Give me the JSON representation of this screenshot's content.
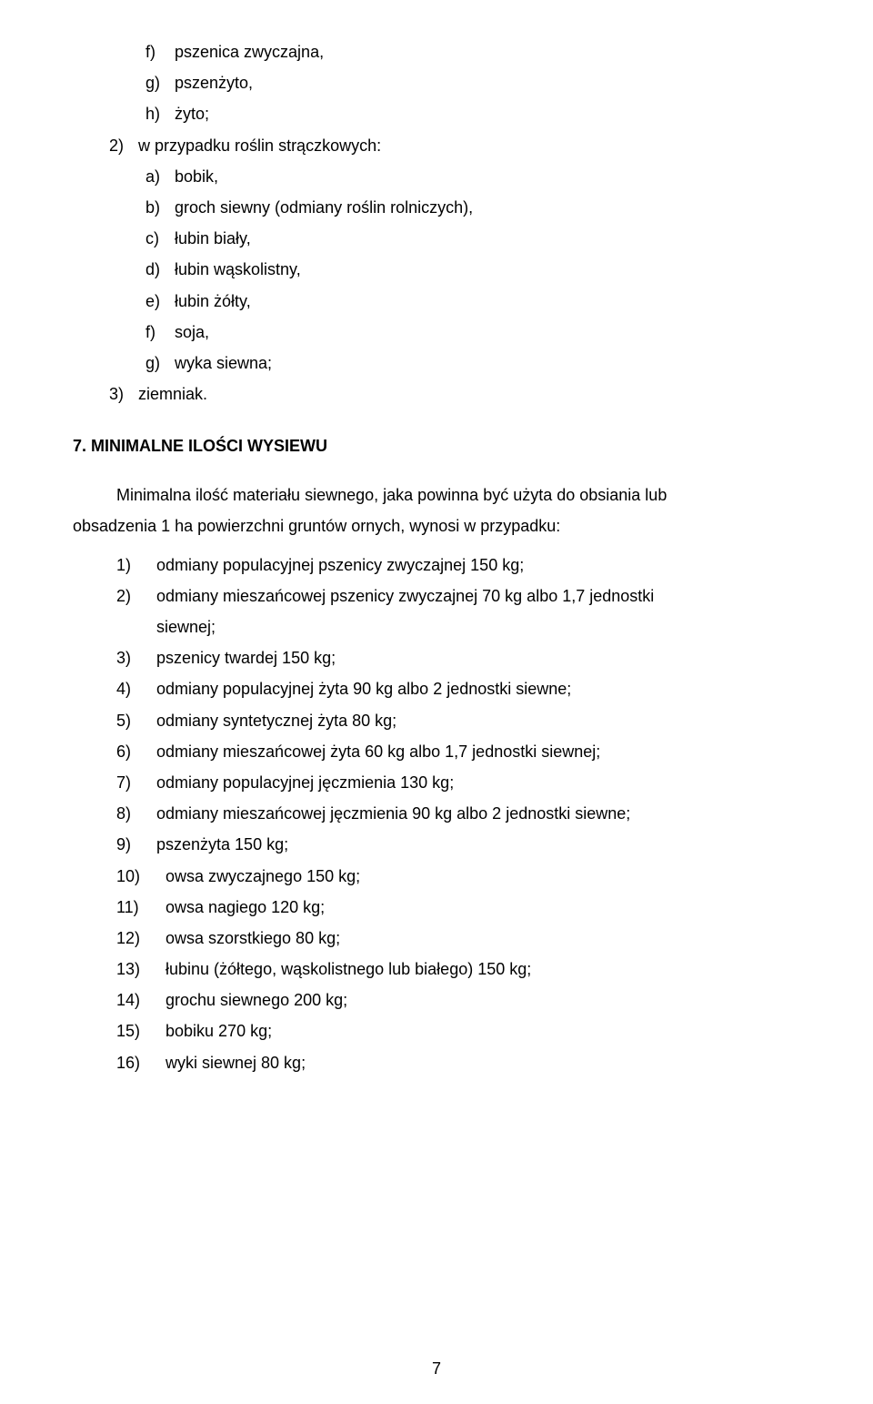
{
  "prev": {
    "f": "pszenica zwyczajna,",
    "g": "pszenżyto,",
    "h": "żyto;",
    "n2": "w przypadku roślin strączkowych:",
    "a": "bobik,",
    "b": "groch siewny (odmiany roślin rolniczych),",
    "c": "łubin biały,",
    "d": "łubin wąskolistny,",
    "e": "łubin żółty,",
    "f2": "soja,",
    "g2": "wyka siewna;",
    "n3": "ziemniak."
  },
  "heading": "7. MINIMALNE ILOŚCI WYSIEWU",
  "para1a": "Minimalna ilość materiału siewnego, jaka powinna być użyta do obsiania lub",
  "para1b": "obsadzenia 1 ha powierzchni gruntów ornych, wynosi w przypadku:",
  "items": {
    "1": "odmiany populacyjnej pszenicy zwyczajnej 150 kg;",
    "2a": "odmiany mieszańcowej pszenicy zwyczajnej 70 kg albo 1,7 jednostki",
    "2b": "siewnej;",
    "3": "pszenicy twardej 150 kg;",
    "4": "odmiany populacyjnej żyta 90 kg albo 2 jednostki siewne;",
    "5": "odmiany syntetycznej żyta 80 kg;",
    "6": "odmiany mieszańcowej żyta 60 kg albo 1,7 jednostki siewnej;",
    "7": "odmiany populacyjnej jęczmienia 130 kg;",
    "8": "odmiany mieszańcowej jęczmienia 90 kg albo 2 jednostki siewne;",
    "9": "pszenżyta 150 kg;",
    "10": "owsa zwyczajnego 150 kg;",
    "11": "owsa nagiego 120 kg;",
    "12": "owsa szorstkiego 80 kg;",
    "13": "łubinu (żółtego, wąskolistnego lub białego) 150 kg;",
    "14": "grochu siewnego 200 kg;",
    "15": "bobiku 270 kg;",
    "16": "wyki siewnej 80 kg;"
  },
  "pagenum": "7"
}
